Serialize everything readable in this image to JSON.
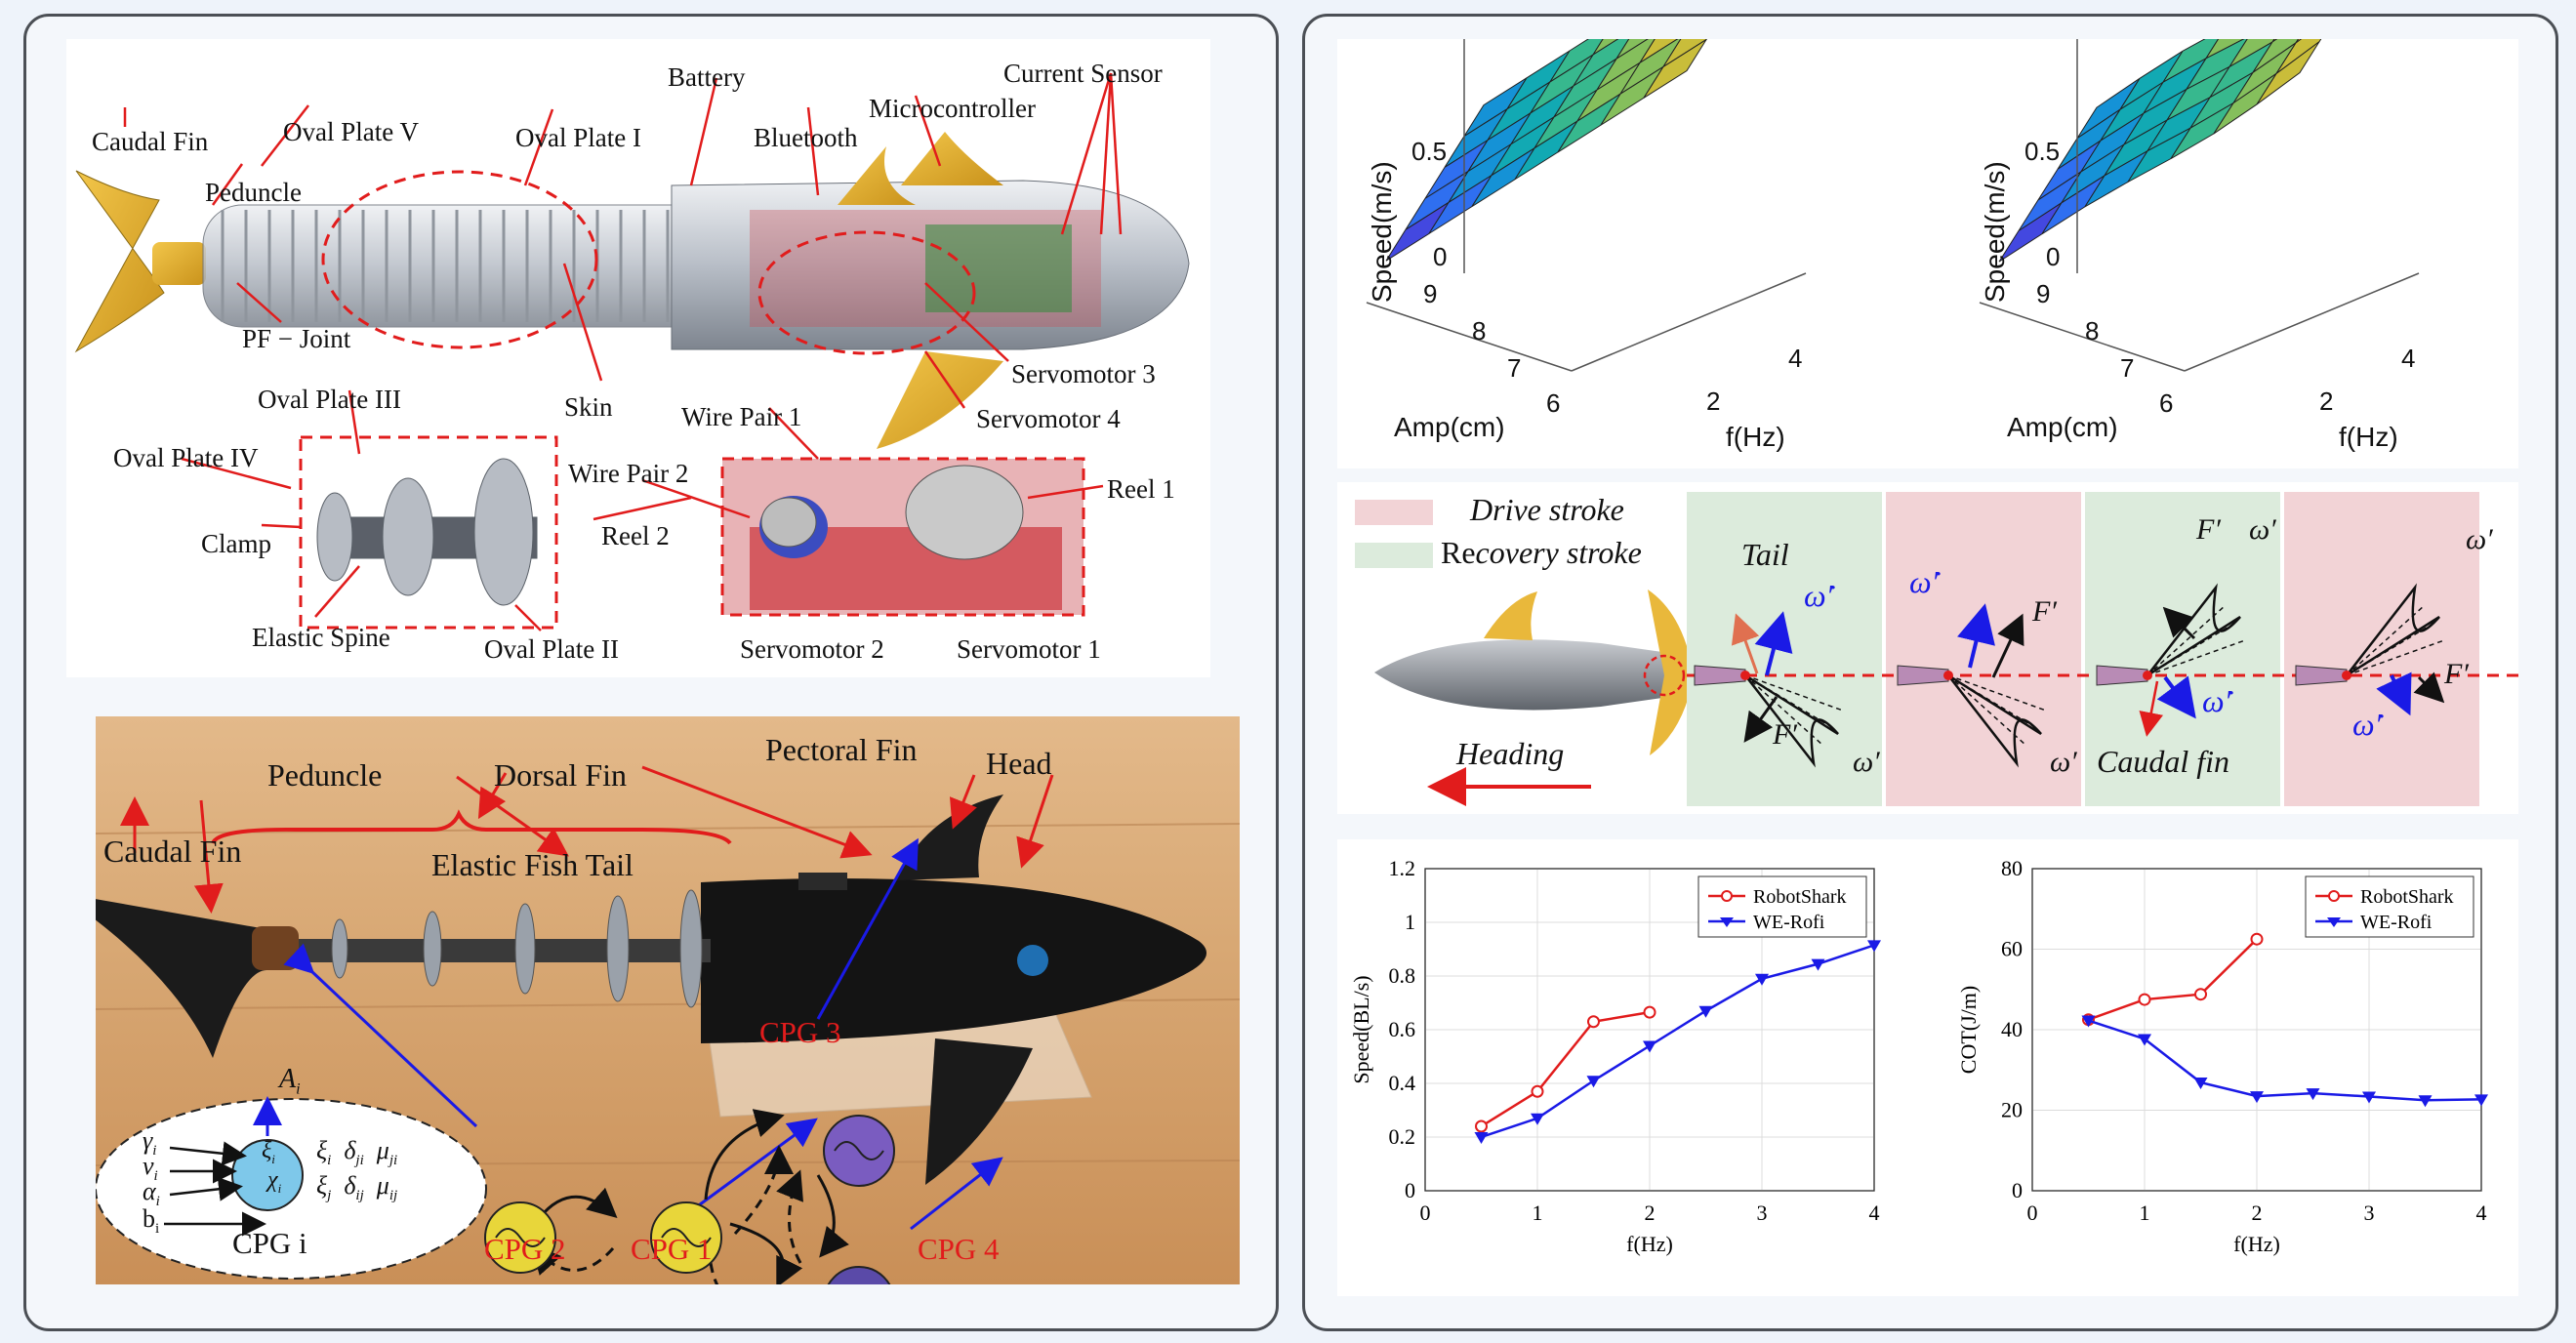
{
  "cad": {
    "labels": {
      "caudal_fin": "Caudal Fin",
      "oval_plate_v": "Oval Plate V",
      "oval_plate_i": "Oval Plate I",
      "battery": "Battery",
      "bluetooth": "Bluetooth",
      "microcontroller": "Microcontroller",
      "current_sensor": "Current Sensor",
      "peduncle": "Peduncle",
      "pf_joint": "PF − Joint",
      "skin": "Skin",
      "servomotor_3": "Servomotor 3",
      "servomotor_4": "Servomotor 4",
      "oval_plate_iii": "Oval Plate III",
      "oval_plate_iv": "Oval Plate IV",
      "clamp": "Clamp",
      "elastic_spine": "Elastic Spine",
      "oval_plate_ii": "Oval Plate II",
      "wire_pair_1": "Wire Pair 1",
      "wire_pair_2": "Wire Pair 2",
      "reel_1": "Reel 1",
      "reel_2": "Reel 2",
      "servomotor_2": "Servomotor 2",
      "servomotor_1": "Servomotor 1"
    }
  },
  "photo": {
    "labels": {
      "peduncle": "Peduncle",
      "dorsal_fin": "Dorsal Fin",
      "pectoral_fin": "Pectoral Fin",
      "head": "Head",
      "caudal_fin": "Caudal Fin",
      "elastic_tail": "Elastic Fish Tail"
    },
    "cpg": {
      "cpg1": "CPG 1",
      "cpg2": "CPG 2",
      "cpg3": "CPG 3",
      "cpg4": "CPG 4"
    },
    "cpg_model": {
      "output": "A",
      "output_sub": "i",
      "inputs": [
        "γ",
        "ν",
        "α",
        "b"
      ],
      "input_sub": "i",
      "center_top": "ξ",
      "center_bottom": "χ",
      "center_sub": "i",
      "couplings": [
        [
          "ξ",
          "i",
          "δ",
          "ji",
          "μ",
          "ji"
        ],
        [
          "ξ",
          "j",
          "δ",
          "ij",
          "μ",
          "ij"
        ]
      ],
      "caption": "CPG i"
    }
  },
  "surfaces": {
    "ylabel": "Speed(m/s)",
    "xlabel_amp": "Amp(cm)",
    "xlabel_f": "f(Hz)",
    "z_ticks": [
      "0.5",
      "0"
    ],
    "amp_ticks": [
      "9",
      "8",
      "7",
      "6"
    ],
    "f_ticks": [
      "4",
      "2"
    ]
  },
  "strokes": {
    "legend_drive": "Drive stroke",
    "legend_recovery_prefix": "Re",
    "legend_recovery_suffix": "covery stroke",
    "heading": "Heading",
    "tail": "Tail",
    "caudal_fin": "Caudal fin",
    "force": "F′",
    "omega": "ω′",
    "omega_dot": "ω̇′",
    "colors": {
      "drive": "#f2d3d6",
      "recovery": "#dcebdc"
    }
  },
  "chart_data": [
    {
      "type": "line",
      "xlabel": "f(Hz)",
      "ylabel": "Speed(BL/s)",
      "xlim": [
        0,
        4
      ],
      "ylim": [
        0,
        1.2
      ],
      "xticks": [
        "0",
        "1",
        "2",
        "3",
        "4"
      ],
      "yticks": [
        "0",
        "0.2",
        "0.4",
        "0.6",
        "0.8",
        "1",
        "1.2"
      ],
      "grid": true,
      "legend": "top-right",
      "series": [
        {
          "name": "RobotShark",
          "color": "#e11c1c",
          "marker": "circle",
          "x": [
            0.5,
            1,
            1.5,
            2
          ],
          "y": [
            0.24,
            0.37,
            0.63,
            0.665
          ]
        },
        {
          "name": "WE-Rofi",
          "color": "#1a1ae6",
          "marker": "triangle-down",
          "x": [
            0.5,
            1,
            1.5,
            2,
            2.5,
            3,
            3.5,
            4
          ],
          "y": [
            0.2,
            0.27,
            0.41,
            0.54,
            0.67,
            0.79,
            0.845,
            0.915
          ]
        }
      ]
    },
    {
      "type": "line",
      "xlabel": "f(Hz)",
      "ylabel": "COT(J/m)",
      "xlim": [
        0,
        4
      ],
      "ylim": [
        0,
        80
      ],
      "xticks": [
        "0",
        "1",
        "2",
        "3",
        "4"
      ],
      "yticks": [
        "0",
        "20",
        "40",
        "60",
        "80"
      ],
      "grid": true,
      "legend": "top-right",
      "series": [
        {
          "name": "RobotShark",
          "color": "#e11c1c",
          "marker": "circle",
          "x": [
            0.5,
            1,
            1.5,
            2
          ],
          "y": [
            42.5,
            47.5,
            48.8,
            62.5
          ]
        },
        {
          "name": "WE-Rofi",
          "color": "#1a1ae6",
          "marker": "triangle-down",
          "x": [
            0.5,
            1,
            1.5,
            2,
            2.5,
            3,
            3.5,
            4
          ],
          "y": [
            42.3,
            37.7,
            26.9,
            23.5,
            24.2,
            23.4,
            22.5,
            22.7
          ]
        }
      ]
    }
  ]
}
